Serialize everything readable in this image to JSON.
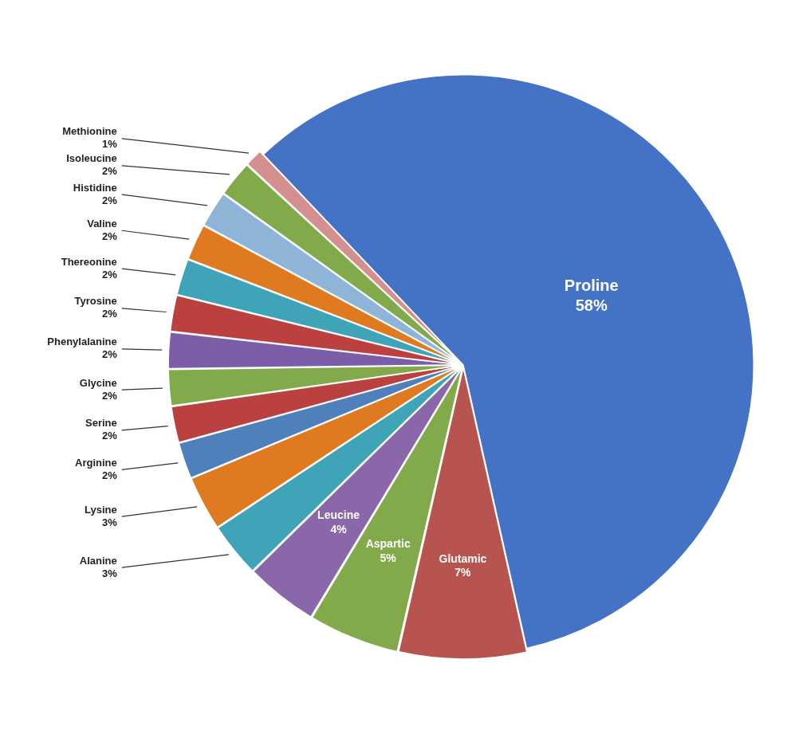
{
  "chart_data": {
    "type": "pie",
    "categories": [
      "Glutamic",
      "Aspartic",
      "Leucine",
      "Alanine",
      "Lysine",
      "Arginine",
      "Serine",
      "Glycine",
      "Phenylalanine",
      "Tyrosine",
      "Thereonine",
      "Valine",
      "Histidine",
      "Isoleucine",
      "Methionine",
      "Proline"
    ],
    "values": [
      7,
      5,
      4,
      3,
      3,
      2,
      2,
      2,
      2,
      2,
      2,
      2,
      2,
      2,
      1,
      58
    ],
    "value_labels": [
      "7%",
      "5%",
      "4%",
      "3%",
      "3%",
      "2%",
      "2%",
      "2%",
      "2%",
      "2%",
      "2%",
      "2%",
      "2%",
      "2%",
      "1%",
      "58%"
    ],
    "colors": [
      "#B85450",
      "#82AA4B",
      "#8A67A8",
      "#3FA4B8",
      "#E07A20",
      "#5080BB",
      "#BB4040",
      "#82AA4B",
      "#7B5EA7",
      "#BB4040",
      "#3FA4B8",
      "#E07A20",
      "#8EB4D8",
      "#82AA4B",
      "#D4908E",
      "#4472C4"
    ],
    "data_labels": true
  }
}
